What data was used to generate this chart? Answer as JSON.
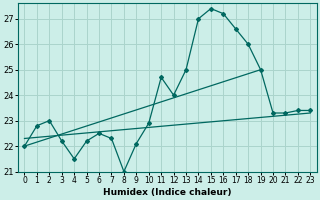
{
  "title": "",
  "xlabel": "Humidex (Indice chaleur)",
  "bg_color": "#cceee8",
  "grid_color": "#aad4cc",
  "line_color": "#006860",
  "xlim": [
    -0.5,
    23.5
  ],
  "ylim": [
    21,
    27.6
  ],
  "yticks": [
    21,
    22,
    23,
    24,
    25,
    26,
    27
  ],
  "xticks": [
    0,
    1,
    2,
    3,
    4,
    5,
    6,
    7,
    8,
    9,
    10,
    11,
    12,
    13,
    14,
    15,
    16,
    17,
    18,
    19,
    20,
    21,
    22,
    23
  ],
  "series1_x": [
    0,
    1,
    2,
    3,
    4,
    5,
    6,
    7,
    8,
    9,
    10,
    11,
    12,
    13,
    14,
    15,
    16,
    17,
    18,
    19,
    20,
    21,
    22,
    23
  ],
  "series1_y": [
    22.0,
    22.8,
    23.0,
    22.2,
    21.5,
    22.2,
    22.5,
    22.3,
    21.0,
    22.1,
    22.9,
    24.7,
    24.0,
    25.0,
    27.0,
    27.4,
    27.2,
    26.6,
    26.0,
    25.0,
    23.3,
    23.3,
    23.4,
    23.4
  ],
  "series2_x": [
    0,
    19
  ],
  "series2_y": [
    22.0,
    25.0
  ],
  "series3_x": [
    0,
    23
  ],
  "series3_y": [
    22.3,
    23.3
  ]
}
